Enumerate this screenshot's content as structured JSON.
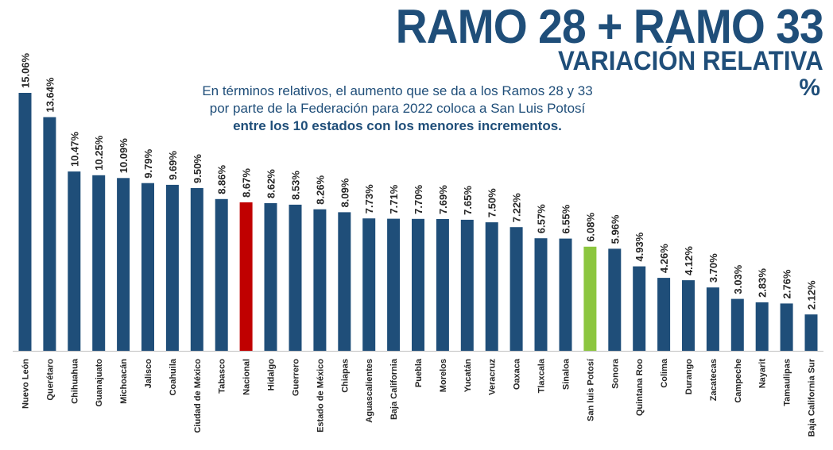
{
  "header": {
    "title": "RAMO 28 + RAMO 33",
    "subtitle": "VARIACIÓN RELATIVA",
    "unit": "%"
  },
  "annotation": {
    "line1": "En términos relativos, el aumento que se da a los Ramos 28 y 33",
    "line2": "por parte de la Federación para 2022 coloca a San Luis Potosí",
    "line3": "entre los 10 estados con los menores incrementos."
  },
  "colors": {
    "default": "#1f4e79",
    "nacional": "#c00000",
    "highlight": "#8cc63f",
    "text": "#1f4e79"
  },
  "chart_data": {
    "type": "bar",
    "title": "RAMO 28 + RAMO 33",
    "ylabel": "",
    "xlabel": "",
    "ylim": [
      0,
      15.06
    ],
    "grid": false,
    "categories": [
      "Nuevo León",
      "Querétaro",
      "Chihuahua",
      "Guanajuato",
      "Michoacán",
      "Jalisco",
      "Coahuila",
      "Ciudad de México",
      "Tabasco",
      "Nacional",
      "Hidalgo",
      "Guerrero",
      "Estado de México",
      "Chiapas",
      "Aguascalientes",
      "Baja California",
      "Puebla",
      "Morelos",
      "Yucatán",
      "Veracruz",
      "Oaxaca",
      "Tlaxcala",
      "Sinaloa",
      "San luis Potosí",
      "Sonora",
      "Quintana Roo",
      "Colima",
      "Durango",
      "Zacatecas",
      "Campeche",
      "Nayarit",
      "Tamaulipas",
      "Baja California Sur"
    ],
    "values": [
      15.06,
      13.64,
      10.47,
      10.25,
      10.09,
      9.79,
      9.69,
      9.5,
      8.86,
      8.67,
      8.62,
      8.53,
      8.26,
      8.09,
      7.73,
      7.71,
      7.7,
      7.69,
      7.65,
      7.5,
      7.22,
      6.57,
      6.55,
      6.08,
      5.96,
      4.93,
      4.26,
      4.12,
      3.7,
      3.03,
      2.83,
      2.76,
      2.12
    ],
    "value_labels": [
      "15.06%",
      "13.64%",
      "10.47%",
      "10.25%",
      "10.09%",
      "9.79%",
      "9.69%",
      "9.50%",
      "8.86%",
      "8.67%",
      "8.62%",
      "8.53%",
      "8.26%",
      "8.09%",
      "7.73%",
      "7.71%",
      "7.70%",
      "7.69%",
      "7.65%",
      "7.50%",
      "7.22%",
      "6.57%",
      "6.55%",
      "6.08%",
      "5.96%",
      "4.93%",
      "4.26%",
      "4.12%",
      "3.70%",
      "3.03%",
      "2.83%",
      "2.76%",
      "2.12%"
    ],
    "bar_colors": [
      "default",
      "default",
      "default",
      "default",
      "default",
      "default",
      "default",
      "default",
      "default",
      "nacional",
      "default",
      "default",
      "default",
      "default",
      "default",
      "default",
      "default",
      "default",
      "default",
      "default",
      "default",
      "default",
      "default",
      "highlight",
      "default",
      "default",
      "default",
      "default",
      "default",
      "default",
      "default",
      "default",
      "default"
    ]
  }
}
